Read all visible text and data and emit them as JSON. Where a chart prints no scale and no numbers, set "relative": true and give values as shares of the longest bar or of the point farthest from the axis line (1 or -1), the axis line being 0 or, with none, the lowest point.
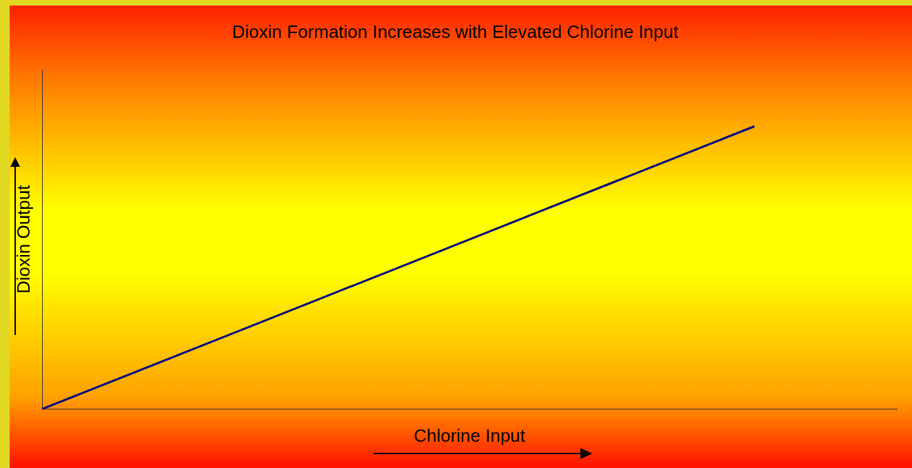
{
  "chart_data": {
    "type": "line",
    "title": "Dioxin Formation Increases with Elevated Chlorine Input",
    "xlabel": "Chlorine Input",
    "ylabel": "Dioxin Output",
    "relative": true,
    "categories": [
      null,
      null,
      null,
      null,
      null,
      null,
      null
    ],
    "series": [
      {
        "color": "#000080",
        "values": [
          0,
          0.2,
          0.4,
          0.6,
          0.8,
          1,
          null
        ]
      }
    ],
    "grid": false,
    "legend": false,
    "marker": "none",
    "line_style": "solid"
  }
}
